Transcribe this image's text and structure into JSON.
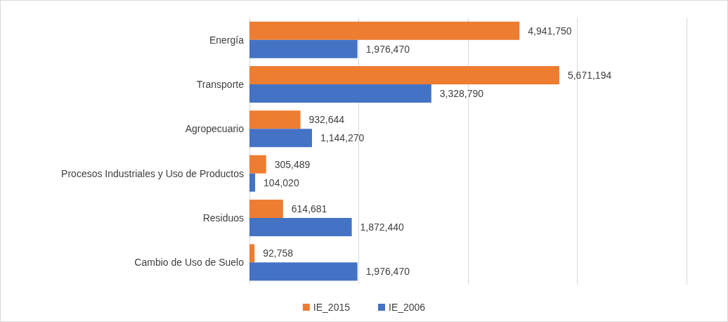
{
  "chart_data": {
    "type": "bar",
    "orientation": "horizontal",
    "categories": [
      "Energía",
      "Transporte",
      "Agropecuario",
      "Procesos Industriales y Uso de Productos",
      "Residuos",
      "Cambio de Uso de Suelo"
    ],
    "series": [
      {
        "name": "IE_2015",
        "color": "#ed7d31",
        "values": [
          4941750,
          5671194,
          932644,
          305489,
          614681,
          92758
        ],
        "value_labels": [
          "4,941,750",
          "5,671,194",
          "932,644",
          "305,489",
          "614,681",
          "92,758"
        ]
      },
      {
        "name": "IE_2006",
        "color": "#4472c4",
        "values": [
          1976470,
          3328790,
          1144270,
          104020,
          1872440,
          1976470
        ],
        "value_labels": [
          "1,976,470",
          "3,328,790",
          "1,144,270",
          "104,020",
          "1,872,440",
          "1,976,470"
        ]
      }
    ],
    "xlim": [
      0,
      8000000
    ],
    "xticks": [
      {
        "value": 0,
        "label": null
      },
      {
        "value": 2000000,
        "label": null
      },
      {
        "value": 4000000,
        "label": null
      },
      {
        "value": 6000000,
        "label": null
      },
      {
        "value": 8000000,
        "label": null
      }
    ],
    "tick_labels": "y",
    "grid": "x",
    "legend": "bottom"
  }
}
